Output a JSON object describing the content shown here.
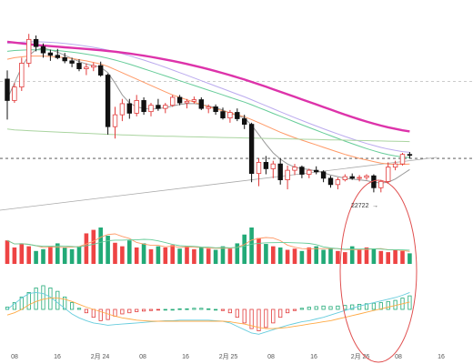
{
  "chart_data": {
    "type": "candlestick",
    "x_ticks": [
      "08",
      "16",
      "2月 24",
      "08",
      "16",
      "2月 25",
      "08",
      "16",
      "2月 26",
      "08",
      "16"
    ],
    "price_annotation": "22722",
    "candles": [
      [
        24150,
        24260,
        23640,
        23880
      ],
      [
        23880,
        24100,
        23850,
        24050
      ],
      [
        24050,
        24420,
        24000,
        24350
      ],
      [
        24350,
        24720,
        24300,
        24650
      ],
      [
        24650,
        24700,
        24500,
        24560
      ],
      [
        24560,
        24600,
        24420,
        24480
      ],
      [
        24480,
        24520,
        24380,
        24450
      ],
      [
        24450,
        24530,
        24400,
        24420
      ],
      [
        24420,
        24480,
        24350,
        24380
      ],
      [
        24380,
        24420,
        24300,
        24350
      ],
      [
        24350,
        24400,
        24250,
        24280
      ],
      [
        24280,
        24350,
        24200,
        24300
      ],
      [
        24300,
        24360,
        24250,
        24320
      ],
      [
        24320,
        24370,
        24180,
        24200
      ],
      [
        24200,
        24220,
        23450,
        23550
      ],
      [
        23550,
        23800,
        23400,
        23700
      ],
      [
        23700,
        23900,
        23620,
        23840
      ],
      [
        23840,
        23900,
        23650,
        23720
      ],
      [
        23720,
        23950,
        23680,
        23880
      ],
      [
        23880,
        23920,
        23700,
        23740
      ],
      [
        23740,
        23850,
        23680,
        23820
      ],
      [
        23820,
        23900,
        23750,
        23780
      ],
      [
        23780,
        23850,
        23720,
        23820
      ],
      [
        23820,
        23950,
        23800,
        23920
      ],
      [
        23920,
        23950,
        23820,
        23850
      ],
      [
        23850,
        23900,
        23780,
        23870
      ],
      [
        23870,
        23930,
        23840,
        23890
      ],
      [
        23890,
        23920,
        23760,
        23780
      ],
      [
        23780,
        23830,
        23720,
        23800
      ],
      [
        23800,
        23830,
        23700,
        23740
      ],
      [
        23740,
        23790,
        23640,
        23660
      ],
      [
        23660,
        23760,
        23600,
        23730
      ],
      [
        23730,
        23780,
        23620,
        23650
      ],
      [
        23650,
        23700,
        23520,
        23580
      ],
      [
        23580,
        23600,
        22850,
        22960
      ],
      [
        22960,
        23150,
        22800,
        23100
      ],
      [
        23100,
        23180,
        22950,
        23020
      ],
      [
        23020,
        23120,
        22900,
        23080
      ],
      [
        23080,
        23150,
        22820,
        22880
      ],
      [
        22880,
        23060,
        22760,
        23000
      ],
      [
        23000,
        23080,
        22940,
        23040
      ],
      [
        23040,
        23060,
        22900,
        22950
      ],
      [
        22950,
        23020,
        22900,
        23000
      ],
      [
        23000,
        23050,
        22950,
        22980
      ],
      [
        22980,
        23000,
        22850,
        22900
      ],
      [
        22900,
        22930,
        22780,
        22820
      ],
      [
        22820,
        22910,
        22760,
        22880
      ],
      [
        22880,
        22950,
        22860,
        22920
      ],
      [
        22920,
        22960,
        22880,
        22900
      ],
      [
        22900,
        22940,
        22860,
        22910
      ],
      [
        22910,
        22950,
        22880,
        22930
      ],
      [
        22930,
        22950,
        22722,
        22780
      ],
      [
        22780,
        22880,
        22722,
        22860
      ],
      [
        22860,
        23100,
        22840,
        23040
      ],
      [
        23040,
        23120,
        23000,
        23080
      ],
      [
        23080,
        23220,
        23060,
        23200
      ],
      [
        23200,
        23230,
        23150,
        23190
      ]
    ],
    "moving_averages": [
      {
        "color": "#999999",
        "values": [
          23900,
          24100,
          24300,
          24450,
          24520,
          24540,
          24520,
          24490,
          24450,
          24410,
          24370,
          24340,
          24320,
          24300,
          24230,
          24100,
          23950,
          23850,
          23800,
          23780,
          23770,
          23780,
          23790,
          23810,
          23830,
          23840,
          23840,
          23830,
          23810,
          23790,
          23760,
          23720,
          23690,
          23660,
          23570,
          23450,
          23330,
          23220,
          23140,
          23080,
          23040,
          23020,
          23010,
          22990,
          22970,
          22940,
          22920,
          22900,
          22890,
          22880,
          22870,
          22850,
          22840,
          22850,
          22890,
          22950,
          23010
        ]
      },
      {
        "color": "#ff9966",
        "values": [
          24400,
          24420,
          24430,
          24440,
          24440,
          24440,
          24435,
          24430,
          24420,
          24410,
          24395,
          24380,
          24360,
          24340,
          24310,
          24270,
          24230,
          24190,
          24150,
          24110,
          24070,
          24030,
          23990,
          23950,
          23920,
          23890,
          23860,
          23830,
          23800,
          23775,
          23750,
          23725,
          23700,
          23675,
          23640,
          23600,
          23560,
          23520,
          23480,
          23445,
          23410,
          23380,
          23350,
          23320,
          23290,
          23260,
          23230,
          23200,
          23175,
          23150,
          23130,
          23110,
          23090,
          23080,
          23075,
          23075,
          23080
        ]
      },
      {
        "color": "#66cc99",
        "values": [
          24500,
          24510,
          24515,
          24520,
          24520,
          24518,
          24515,
          24510,
          24500,
          24490,
          24478,
          24465,
          24450,
          24433,
          24413,
          24390,
          24365,
          24338,
          24310,
          24280,
          24250,
          24220,
          24190,
          24160,
          24130,
          24100,
          24070,
          24040,
          24010,
          23980,
          23950,
          23920,
          23890,
          23860,
          23826,
          23790,
          23754,
          23718,
          23682,
          23646,
          23610,
          23574,
          23540,
          23505,
          23470,
          23436,
          23402,
          23368,
          23336,
          23304,
          23274,
          23246,
          23220,
          23198,
          23180,
          23168,
          23160
        ]
      },
      {
        "color": "#bbaaee",
        "values": [
          24600,
          24610,
          24615,
          24620,
          24620,
          24618,
          24614,
          24608,
          24600,
          24590,
          24578,
          24565,
          24550,
          24534,
          24515,
          24494,
          24470,
          24445,
          24418,
          24390,
          24360,
          24330,
          24298,
          24265,
          24232,
          24198,
          24164,
          24130,
          24096,
          24062,
          24028,
          23994,
          23960,
          23926,
          23890,
          23852,
          23814,
          23776,
          23738,
          23700,
          23664,
          23628,
          23592,
          23558,
          23524,
          23490,
          23458,
          23426,
          23396,
          23366,
          23338,
          23312,
          23288,
          23268,
          23250,
          23236,
          23226
        ]
      },
      {
        "color": "#dd33aa",
        "values": [
          24620,
          24610,
          24600,
          24590,
          24580,
          24572,
          24565,
          24558,
          24551,
          24544,
          24537,
          24530,
          24522,
          24514,
          24505,
          24495,
          24484,
          24472,
          24459,
          24445,
          24430,
          24414,
          24397,
          24379,
          24360,
          24340,
          24319,
          24297,
          24274,
          24250,
          24225,
          24199,
          24172,
          24144,
          24115,
          24085,
          24054,
          24022,
          23990,
          23958,
          23926,
          23894,
          23862,
          23830,
          23798,
          23766,
          23734,
          23702,
          23672,
          23642,
          23614,
          23588,
          23564,
          23542,
          23522,
          23504,
          23490
        ]
      },
      {
        "color": "#aad4a0",
        "values": [
          23520,
          23510,
          23505,
          23500,
          23495,
          23490,
          23486,
          23482,
          23478,
          23474,
          23470,
          23466,
          23462,
          23458,
          23454,
          23450,
          23447,
          23444,
          23441,
          23438,
          23435,
          23432,
          23430,
          23428,
          23426,
          23424,
          23422,
          23420,
          23418,
          23416,
          23414,
          23412,
          23410,
          23408,
          23406,
          23404,
          23402,
          23400,
          23398,
          23396,
          23394,
          23392,
          23390,
          23388,
          23386,
          23384,
          23382,
          23380,
          23378,
          23376,
          23374,
          23372,
          23370,
          23368,
          23366,
          23364,
          23362
        ]
      }
    ],
    "ref_lines": [
      24120,
      23150
    ],
    "volume": {
      "values": [
        40,
        28,
        35,
        30,
        22,
        25,
        30,
        35,
        28,
        25,
        30,
        52,
        58,
        62,
        48,
        36,
        30,
        40,
        28,
        35,
        25,
        30,
        28,
        32,
        26,
        30,
        25,
        28,
        26,
        24,
        30,
        26,
        35,
        50,
        62,
        44,
        34,
        30,
        28,
        24,
        26,
        22,
        28,
        30,
        24,
        26,
        22,
        20,
        30,
        24,
        28,
        26,
        22,
        20,
        24,
        22,
        18
      ],
      "up": [
        1,
        1,
        1,
        1,
        0,
        0,
        1,
        0,
        0,
        0,
        0,
        1,
        1,
        0,
        0,
        1,
        1,
        0,
        1,
        0,
        1,
        0,
        1,
        1,
        0,
        1,
        1,
        0,
        1,
        0,
        0,
        1,
        0,
        0,
        0,
        1,
        0,
        1,
        0,
        1,
        1,
        0,
        1,
        0,
        0,
        0,
        1,
        1,
        0,
        1,
        1,
        0,
        1,
        1,
        1,
        1,
        0
      ]
    },
    "macd": {
      "hist": [
        4,
        12,
        22,
        30,
        38,
        42,
        38,
        32,
        22,
        12,
        2,
        -6,
        -14,
        -20,
        -18,
        -12,
        -8,
        -6,
        -4,
        -3,
        -2,
        -1,
        0,
        0,
        1,
        1,
        2,
        2,
        1,
        0,
        -2,
        -6,
        -14,
        -24,
        -34,
        -38,
        -32,
        -24,
        -14,
        -6,
        -2,
        2,
        4,
        5,
        6,
        5,
        6,
        7,
        8,
        9,
        10,
        11,
        12,
        14,
        16,
        20,
        24
      ],
      "dif": [
        0,
        10,
        20,
        28,
        30,
        28,
        22,
        12,
        2,
        -8,
        -15,
        -20,
        -24,
        -26,
        -28,
        -27,
        -26,
        -25,
        -24,
        -23,
        -22,
        -21,
        -20,
        -20,
        -19,
        -19,
        -19,
        -19,
        -19,
        -20,
        -21,
        -24,
        -30,
        -36,
        -42,
        -44,
        -40,
        -36,
        -32,
        -28,
        -25,
        -22,
        -20,
        -17,
        -14,
        -10,
        -6,
        -2,
        2,
        6,
        9,
        12,
        15,
        18,
        21,
        25,
        30
      ],
      "dea": [
        -10,
        -6,
        0,
        8,
        14,
        18,
        20,
        20,
        18,
        14,
        9,
        4,
        0,
        -4,
        -8,
        -12,
        -15,
        -17,
        -19,
        -20,
        -21,
        -21,
        -21,
        -21,
        -21,
        -21,
        -21,
        -21,
        -21,
        -21,
        -21,
        -22,
        -24,
        -26,
        -29,
        -32,
        -34,
        -34,
        -33,
        -32,
        -30,
        -28,
        -26,
        -24,
        -22,
        -20,
        -17,
        -14,
        -11,
        -8,
        -5,
        -2,
        1,
        4,
        7,
        10,
        13
      ]
    },
    "colors": {
      "up": "#e23c3c",
      "down": "#111111",
      "vol_up": "#ee4444",
      "vol_down": "#22aa77",
      "circle": "#e05050"
    }
  }
}
